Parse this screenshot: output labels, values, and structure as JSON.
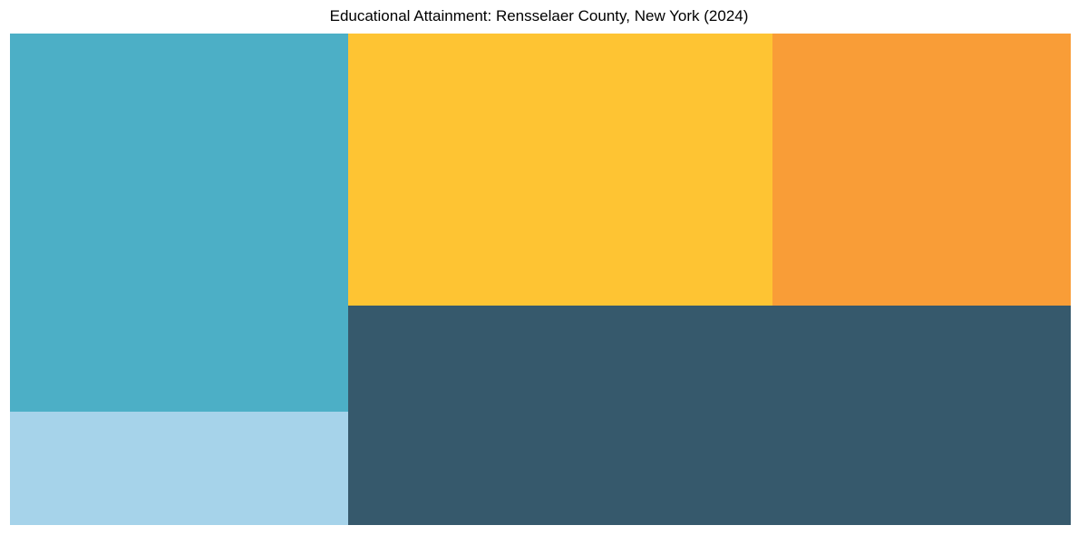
{
  "page": {
    "background": "#ffffff"
  },
  "chart_data": {
    "type": "treemap",
    "title": "Educational Attainment: Rensselaer County, New York (2024)",
    "legend": "none",
    "data_labels": "none",
    "items": [
      {
        "id": "teal",
        "color": "#4CAFC6",
        "share_pct": 24.5,
        "position": "top-left",
        "x_pct": 0.0,
        "y_pct": 0.0,
        "w_pct": 31.9,
        "h_pct": 76.9
      },
      {
        "id": "light-blue",
        "color": "#A6D3EA",
        "share_pct": 7.4,
        "position": "bottom-left",
        "x_pct": 0.0,
        "y_pct": 76.9,
        "w_pct": 31.9,
        "h_pct": 23.1
      },
      {
        "id": "yellow",
        "color": "#FEC433",
        "share_pct": 22.1,
        "position": "top-middle",
        "x_pct": 31.9,
        "y_pct": 0.0,
        "w_pct": 40.0,
        "h_pct": 55.4
      },
      {
        "id": "orange",
        "color": "#F99D37",
        "share_pct": 15.6,
        "position": "top-right",
        "x_pct": 71.9,
        "y_pct": 0.0,
        "w_pct": 28.1,
        "h_pct": 55.4
      },
      {
        "id": "dark-slate",
        "color": "#36596C",
        "share_pct": 30.4,
        "position": "bottom-right",
        "x_pct": 31.9,
        "y_pct": 55.4,
        "w_pct": 68.1,
        "h_pct": 44.6
      }
    ]
  }
}
